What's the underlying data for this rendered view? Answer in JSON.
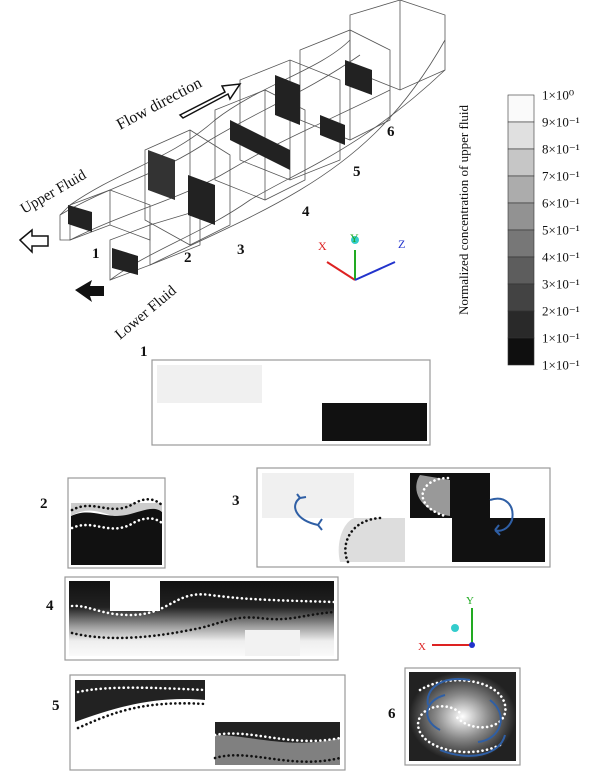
{
  "figure": {
    "top": {
      "flow_label": "Flow direction",
      "upper_label": "Upper Fluid",
      "lower_label": "Lower Fluid",
      "section_numbers": [
        "1",
        "2",
        "3",
        "4",
        "5",
        "6"
      ],
      "axes": [
        "X",
        "Y",
        "Z"
      ]
    },
    "colorbar": {
      "title": "Normalized concentration of upper fluid",
      "labels": [
        "1×10⁰",
        "9×10⁻¹",
        "8×10⁻¹",
        "7×10⁻¹",
        "6×10⁻¹",
        "5×10⁻¹",
        "4×10⁻¹",
        "3×10⁻¹",
        "2×10⁻¹",
        "1×10⁻¹",
        "1×10⁻¹"
      ]
    },
    "panels": [
      {
        "label": "1"
      },
      {
        "label": "2"
      },
      {
        "label": "3"
      },
      {
        "label": "4"
      },
      {
        "label": "5"
      },
      {
        "label": "6"
      }
    ],
    "inset_axes": [
      "X",
      "Y"
    ]
  }
}
